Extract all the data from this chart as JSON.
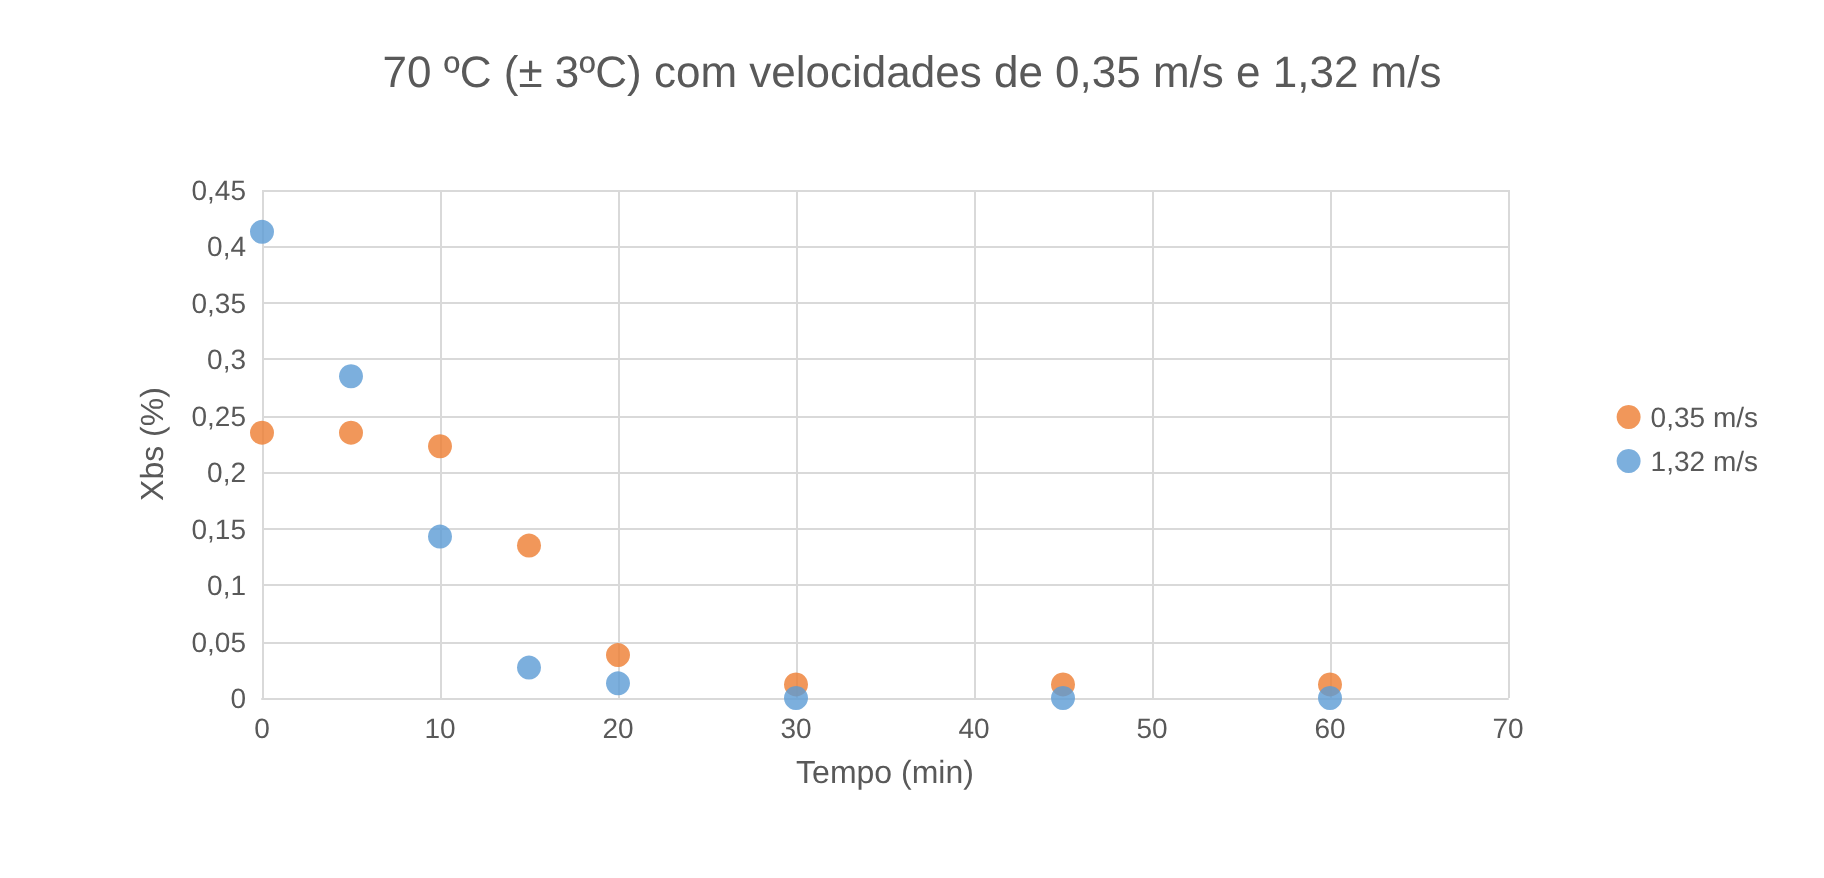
{
  "chart_data": {
    "type": "scatter",
    "title": "70 ºC (± 3ºC) com velocidades de 0,35 m/s e 1,32 m/s",
    "xlabel": "Tempo (min)",
    "ylabel": "Xbs (%)",
    "x": [
      0,
      5,
      10,
      15,
      20,
      30,
      45,
      60
    ],
    "series": [
      {
        "name": "0,35 m/s",
        "color": "#ed7d31",
        "values": [
          0.235,
          0.235,
          0.223,
          0.135,
          0.038,
          0.012,
          0.012,
          0.012
        ]
      },
      {
        "name": "1,32 m/s",
        "color": "#5b9bd5",
        "values": [
          0.413,
          0.285,
          0.143,
          0.027,
          0.013,
          0,
          0,
          0
        ]
      }
    ],
    "xlim": [
      0,
      70
    ],
    "xticks": [
      0,
      10,
      20,
      30,
      40,
      50,
      60,
      70
    ],
    "ylim": [
      0,
      0.45
    ],
    "yticks": [
      0,
      {
        "value": 0.05,
        "label": "0,05"
      },
      {
        "value": 0.1,
        "label": "0,1"
      },
      {
        "value": 0.15,
        "label": "0,15"
      },
      {
        "value": 0.2,
        "label": "0,2"
      },
      {
        "value": 0.25,
        "label": "0,25"
      },
      {
        "value": 0.3,
        "label": "0,3"
      },
      {
        "value": 0.35,
        "label": "0,35"
      },
      {
        "value": 0.4,
        "label": "0,4"
      },
      {
        "value": 0.45,
        "label": "0,45"
      }
    ],
    "grid": true,
    "legend": "right",
    "marker": "circle"
  }
}
